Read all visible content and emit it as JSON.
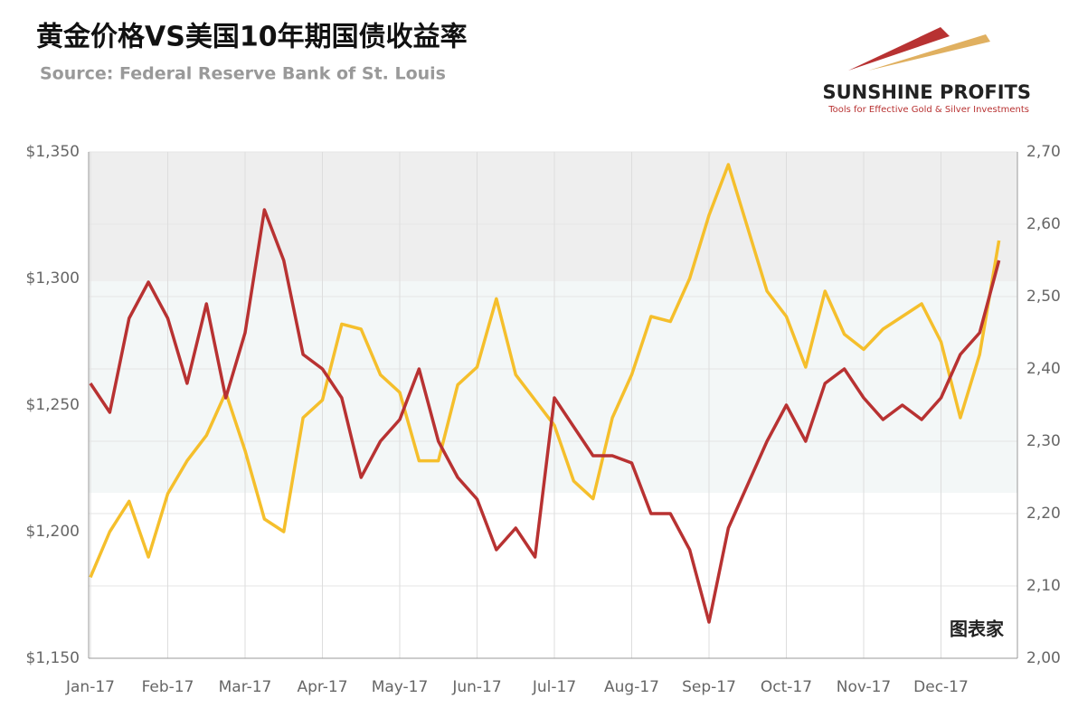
{
  "chart_data": {
    "type": "line",
    "title": "黄金价格VS美国10年期国债收益率",
    "subtitle": "Source: Federal Reserve Bank of St. Louis",
    "logo": {
      "name": "SUNSHINE PROFITS",
      "tagline": "Tools for Effective Gold & Silver Investments"
    },
    "watermark": "图表家",
    "categories": [
      "Jan-17",
      null,
      null,
      null,
      "Feb-17",
      null,
      null,
      null,
      "Mar-17",
      null,
      null,
      null,
      "Apr-17",
      null,
      null,
      null,
      "May-17",
      null,
      null,
      null,
      "Jun-17",
      null,
      null,
      null,
      "Jul-17",
      null,
      null,
      null,
      "Aug-17",
      null,
      null,
      null,
      "Sep-17",
      null,
      null,
      null,
      "Oct-17",
      null,
      null,
      null,
      "Nov-17",
      null,
      null,
      null,
      "Dec-17",
      null,
      null,
      null
    ],
    "ylim": [
      1150,
      1350
    ],
    "yticks": [
      {
        "value": 1150,
        "label": "$1,150"
      },
      {
        "value": 1200,
        "label": "$1,200"
      },
      {
        "value": 1250,
        "label": "$1,250"
      },
      {
        "value": 1300,
        "label": "$1,300"
      },
      {
        "value": 1350,
        "label": "$1,350"
      }
    ],
    "y2lim": [
      2.0,
      2.7
    ],
    "y2ticks": [
      {
        "value": 2.0,
        "label": "2,00"
      },
      {
        "value": 2.1,
        "label": "2,10"
      },
      {
        "value": 2.2,
        "label": "2,20"
      },
      {
        "value": 2.3,
        "label": "2,30"
      },
      {
        "value": 2.4,
        "label": "2,40"
      },
      {
        "value": 2.5,
        "label": "2,50"
      },
      {
        "value": 2.6,
        "label": "2,60"
      },
      {
        "value": 2.7,
        "label": "2,70"
      }
    ],
    "grid": true,
    "series": [
      {
        "name": "Gold",
        "color": "#f5bf2c",
        "axis": "y",
        "values": [
          1182,
          1200,
          1212,
          1190,
          1215,
          1228,
          1238,
          1255,
          1232,
          1205,
          1200,
          1245,
          1252,
          1282,
          1280,
          1262,
          1255,
          1228,
          1228,
          1258,
          1265,
          1292,
          1262,
          1252,
          1242,
          1220,
          1213,
          1245,
          1262,
          1285,
          1283,
          1300,
          1325,
          1345,
          1320,
          1295,
          1285,
          1265,
          1295,
          1278,
          1272,
          1280,
          1285,
          1290,
          1275,
          1245,
          1270,
          1315
        ]
      },
      {
        "name": "10Y Yield",
        "color": "#b83232",
        "axis": "y2",
        "values": [
          2.38,
          2.34,
          2.47,
          2.52,
          2.47,
          2.38,
          2.49,
          2.36,
          2.45,
          2.62,
          2.55,
          2.42,
          2.4,
          2.36,
          2.25,
          2.3,
          2.33,
          2.4,
          2.3,
          2.25,
          2.22,
          2.15,
          2.18,
          2.14,
          2.36,
          2.32,
          2.28,
          2.28,
          2.27,
          2.2,
          2.2,
          2.15,
          2.05,
          2.18,
          2.24,
          2.3,
          2.35,
          2.3,
          2.38,
          2.4,
          2.36,
          2.33,
          2.35,
          2.33,
          2.36,
          2.42,
          2.45,
          2.55
        ]
      }
    ]
  }
}
